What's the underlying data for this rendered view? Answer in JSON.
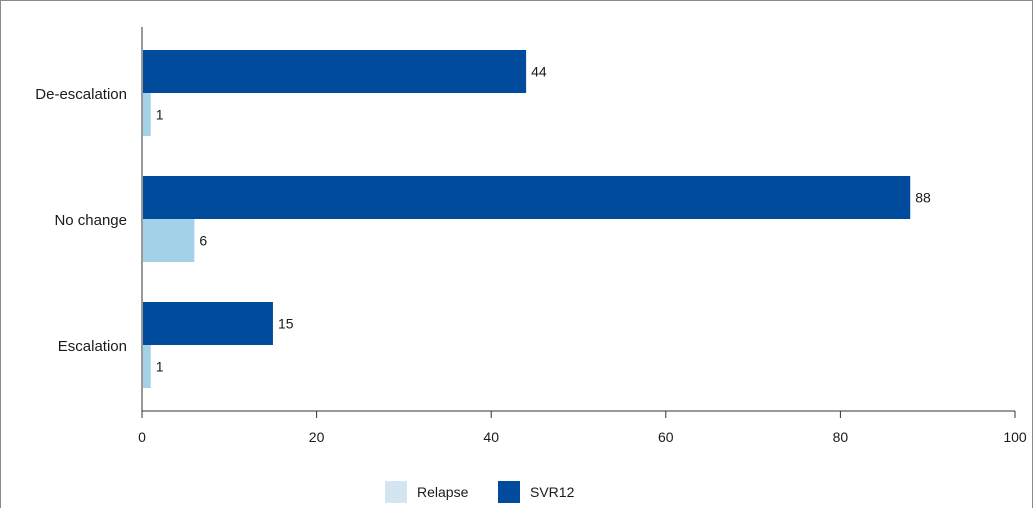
{
  "chart_data": {
    "type": "bar",
    "orientation": "horizontal",
    "categories": [
      "De-escalation",
      "No change",
      "Escalation"
    ],
    "series": [
      {
        "name": "SVR12",
        "values": [
          44,
          88,
          15
        ],
        "color": "#004b9b"
      },
      {
        "name": "Relapse",
        "values": [
          1,
          6,
          1
        ],
        "color": "#a3d1e7"
      }
    ],
    "xlim": [
      0,
      100
    ],
    "xticks": [
      "0",
      "20",
      "40",
      "60",
      "80",
      "100"
    ],
    "grid": false,
    "legend": {
      "placement": "bottom-center",
      "order": [
        "Relapse",
        "SVR12"
      ]
    }
  }
}
